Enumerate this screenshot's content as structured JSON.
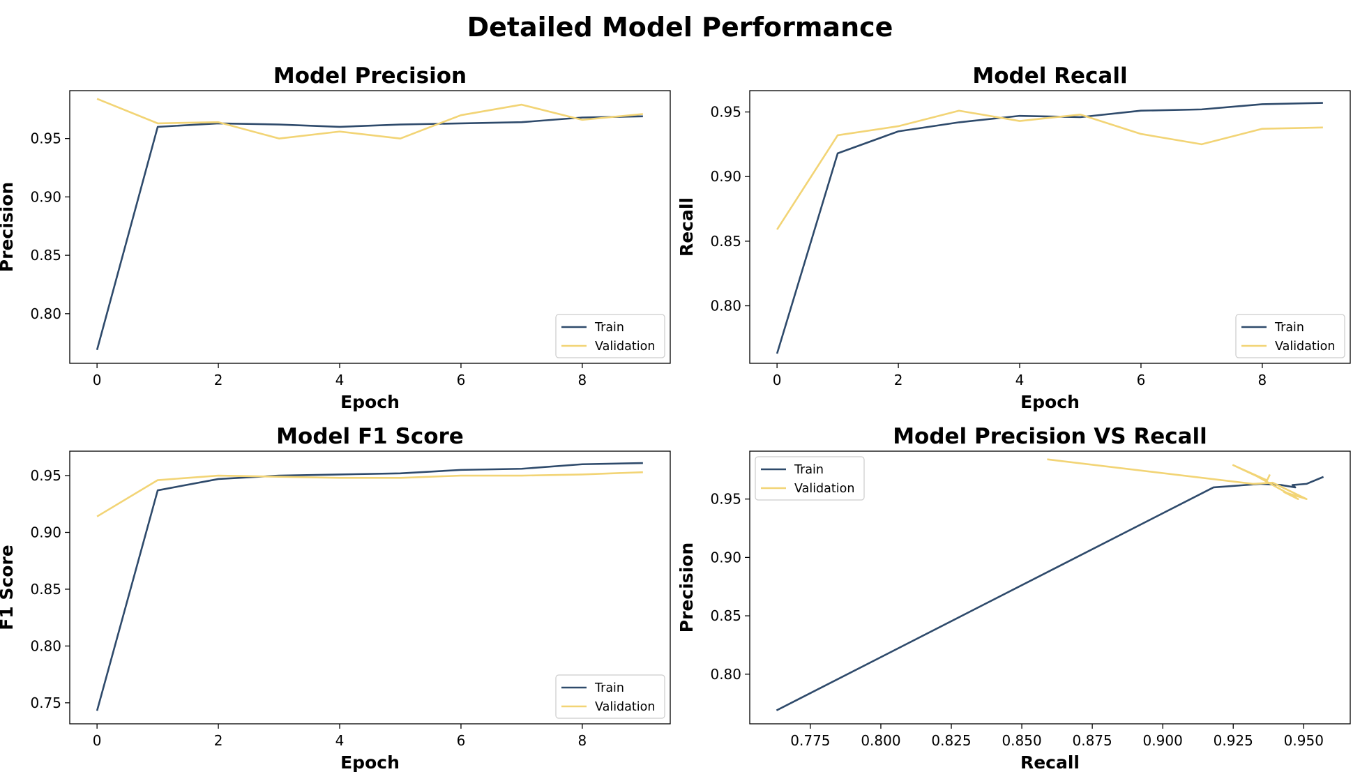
{
  "figure": {
    "title": "Detailed Model Performance"
  },
  "colors": {
    "train": "#2e4a6b",
    "validation": "#f2d475",
    "axes": "#000000",
    "legend_border": "#cccccc"
  },
  "chart_data": [
    {
      "type": "line",
      "title": "Model Precision",
      "xlabel": "Epoch",
      "ylabel": "Precision",
      "xlim": [
        -0.45,
        9.45
      ],
      "ylim": [
        0.7575,
        0.991
      ],
      "xticks": [
        0,
        2,
        4,
        6,
        8
      ],
      "xtick_labels": [
        "0",
        "2",
        "4",
        "6",
        "8"
      ],
      "yticks": [
        0.8,
        0.85,
        0.9,
        0.95
      ],
      "ytick_labels": [
        "0.80",
        "0.85",
        "0.90",
        "0.95"
      ],
      "legend_position": "lower-right",
      "x": [
        0,
        1,
        2,
        3,
        4,
        5,
        6,
        7,
        8,
        9
      ],
      "series": [
        {
          "name": "Train",
          "values": [
            0.769,
            0.96,
            0.963,
            0.962,
            0.96,
            0.962,
            0.963,
            0.964,
            0.968,
            0.969
          ]
        },
        {
          "name": "Validation",
          "values": [
            0.984,
            0.963,
            0.964,
            0.95,
            0.956,
            0.95,
            0.97,
            0.979,
            0.966,
            0.971
          ]
        }
      ]
    },
    {
      "type": "line",
      "title": "Model Recall",
      "xlabel": "Epoch",
      "ylabel": "Recall",
      "xlim": [
        -0.45,
        9.45
      ],
      "ylim": [
        0.7555,
        0.9665
      ],
      "xticks": [
        0,
        2,
        4,
        6,
        8
      ],
      "xtick_labels": [
        "0",
        "2",
        "4",
        "6",
        "8"
      ],
      "yticks": [
        0.8,
        0.85,
        0.9,
        0.95
      ],
      "ytick_labels": [
        "0.80",
        "0.85",
        "0.90",
        "0.95"
      ],
      "legend_position": "lower-right",
      "x": [
        0,
        1,
        2,
        3,
        4,
        5,
        6,
        7,
        8,
        9
      ],
      "series": [
        {
          "name": "Train",
          "values": [
            0.763,
            0.918,
            0.935,
            0.942,
            0.947,
            0.946,
            0.951,
            0.952,
            0.956,
            0.957
          ]
        },
        {
          "name": "Validation",
          "values": [
            0.859,
            0.932,
            0.939,
            0.951,
            0.943,
            0.948,
            0.933,
            0.925,
            0.937,
            0.938
          ]
        }
      ]
    },
    {
      "type": "line",
      "title": "Model F1 Score",
      "xlabel": "Epoch",
      "ylabel": "F1 Score",
      "xlim": [
        -0.45,
        9.45
      ],
      "ylim": [
        0.7315,
        0.9715
      ],
      "xticks": [
        0,
        2,
        4,
        6,
        8
      ],
      "xtick_labels": [
        "0",
        "2",
        "4",
        "6",
        "8"
      ],
      "yticks": [
        0.75,
        0.8,
        0.85,
        0.9,
        0.95
      ],
      "ytick_labels": [
        "0.75",
        "0.80",
        "0.85",
        "0.90",
        "0.95"
      ],
      "legend_position": "lower-right",
      "x": [
        0,
        1,
        2,
        3,
        4,
        5,
        6,
        7,
        8,
        9
      ],
      "series": [
        {
          "name": "Train",
          "values": [
            0.743,
            0.937,
            0.947,
            0.95,
            0.951,
            0.952,
            0.955,
            0.956,
            0.96,
            0.961
          ]
        },
        {
          "name": "Validation",
          "values": [
            0.914,
            0.946,
            0.95,
            0.949,
            0.948,
            0.948,
            0.95,
            0.95,
            0.951,
            0.953
          ]
        }
      ]
    },
    {
      "type": "line",
      "title": "Model Precision VS Recall",
      "xlabel": "Recall",
      "ylabel": "Precision",
      "xlim": [
        0.7535,
        0.9665
      ],
      "ylim": [
        0.7575,
        0.991
      ],
      "xticks": [
        0.775,
        0.8,
        0.825,
        0.85,
        0.875,
        0.9,
        0.925,
        0.95
      ],
      "xtick_labels": [
        "0.775",
        "0.800",
        "0.825",
        "0.850",
        "0.875",
        "0.900",
        "0.925",
        "0.950"
      ],
      "yticks": [
        0.8,
        0.85,
        0.9,
        0.95
      ],
      "ytick_labels": [
        "0.80",
        "0.85",
        "0.90",
        "0.95"
      ],
      "legend_position": "upper-left",
      "series": [
        {
          "name": "Train",
          "x": [
            0.763,
            0.918,
            0.935,
            0.942,
            0.947,
            0.946,
            0.951,
            0.952,
            0.956,
            0.957
          ],
          "values": [
            0.769,
            0.96,
            0.963,
            0.962,
            0.96,
            0.962,
            0.963,
            0.964,
            0.968,
            0.969
          ]
        },
        {
          "name": "Validation",
          "x": [
            0.859,
            0.932,
            0.939,
            0.951,
            0.943,
            0.948,
            0.933,
            0.925,
            0.937,
            0.938
          ],
          "values": [
            0.984,
            0.963,
            0.964,
            0.95,
            0.956,
            0.95,
            0.97,
            0.979,
            0.966,
            0.971
          ]
        }
      ]
    }
  ]
}
